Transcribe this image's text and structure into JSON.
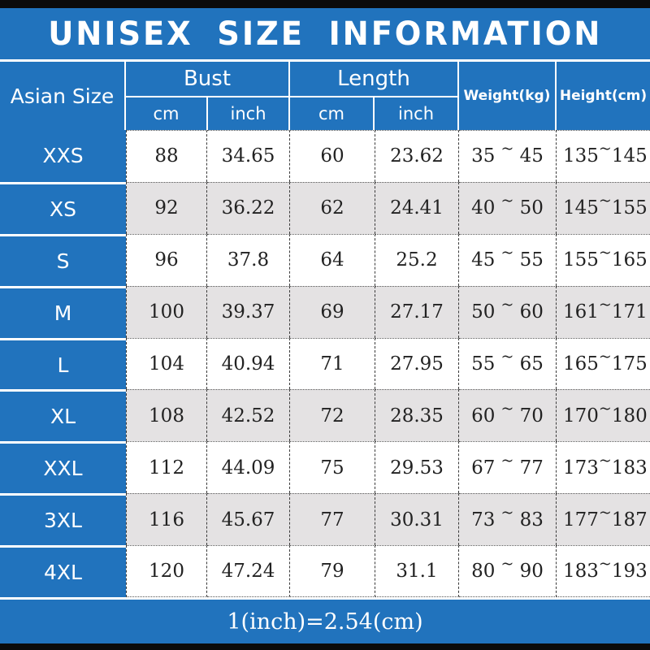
{
  "title": "UNISEX SIZE INFORMATION",
  "header": {
    "asian_size": "Asian Size",
    "bust": "Bust",
    "length": "Length",
    "cm": "cm",
    "inch": "inch",
    "weight_kg": "Weight(kg)",
    "height_cm": "Height(cm)"
  },
  "tilde": "~",
  "footer": "1(inch)=2.54(cm)",
  "colors": {
    "blue": "#2173bd",
    "row_alt_gray": "#e4e2e3",
    "bar_black": "#0b0b0b",
    "text_dark": "#222222",
    "text_white": "#ffffff"
  },
  "chart_data": {
    "type": "table",
    "title": "UNISEX SIZE INFORMATION",
    "columns": [
      "Asian Size",
      "Bust (cm)",
      "Bust (inch)",
      "Length (cm)",
      "Length (inch)",
      "Weight(kg)",
      "Height(cm)"
    ],
    "rows": [
      {
        "size": "XXS",
        "bust_cm": "88",
        "bust_inch": "34.65",
        "length_cm": "60",
        "length_inch": "23.62",
        "weight_min": "35",
        "weight_max": "45",
        "height_min": "135",
        "height_max": "145"
      },
      {
        "size": "XS",
        "bust_cm": "92",
        "bust_inch": "36.22",
        "length_cm": "62",
        "length_inch": "24.41",
        "weight_min": "40",
        "weight_max": "50",
        "height_min": "145",
        "height_max": "155"
      },
      {
        "size": "S",
        "bust_cm": "96",
        "bust_inch": "37.8",
        "length_cm": "64",
        "length_inch": "25.2",
        "weight_min": "45",
        "weight_max": "55",
        "height_min": "155",
        "height_max": "165"
      },
      {
        "size": "M",
        "bust_cm": "100",
        "bust_inch": "39.37",
        "length_cm": "69",
        "length_inch": "27.17",
        "weight_min": "50",
        "weight_max": "60",
        "height_min": "161",
        "height_max": "171"
      },
      {
        "size": "L",
        "bust_cm": "104",
        "bust_inch": "40.94",
        "length_cm": "71",
        "length_inch": "27.95",
        "weight_min": "55",
        "weight_max": "65",
        "height_min": "165",
        "height_max": "175"
      },
      {
        "size": "XL",
        "bust_cm": "108",
        "bust_inch": "42.52",
        "length_cm": "72",
        "length_inch": "28.35",
        "weight_min": "60",
        "weight_max": "70",
        "height_min": "170",
        "height_max": "180"
      },
      {
        "size": "XXL",
        "bust_cm": "112",
        "bust_inch": "44.09",
        "length_cm": "75",
        "length_inch": "29.53",
        "weight_min": "67",
        "weight_max": "77",
        "height_min": "173",
        "height_max": "183"
      },
      {
        "size": "3XL",
        "bust_cm": "116",
        "bust_inch": "45.67",
        "length_cm": "77",
        "length_inch": "30.31",
        "weight_min": "73",
        "weight_max": "83",
        "height_min": "177",
        "height_max": "187"
      },
      {
        "size": "4XL",
        "bust_cm": "120",
        "bust_inch": "47.24",
        "length_cm": "79",
        "length_inch": "31.1",
        "weight_min": "80",
        "weight_max": "90",
        "height_min": "183",
        "height_max": "193"
      }
    ]
  }
}
